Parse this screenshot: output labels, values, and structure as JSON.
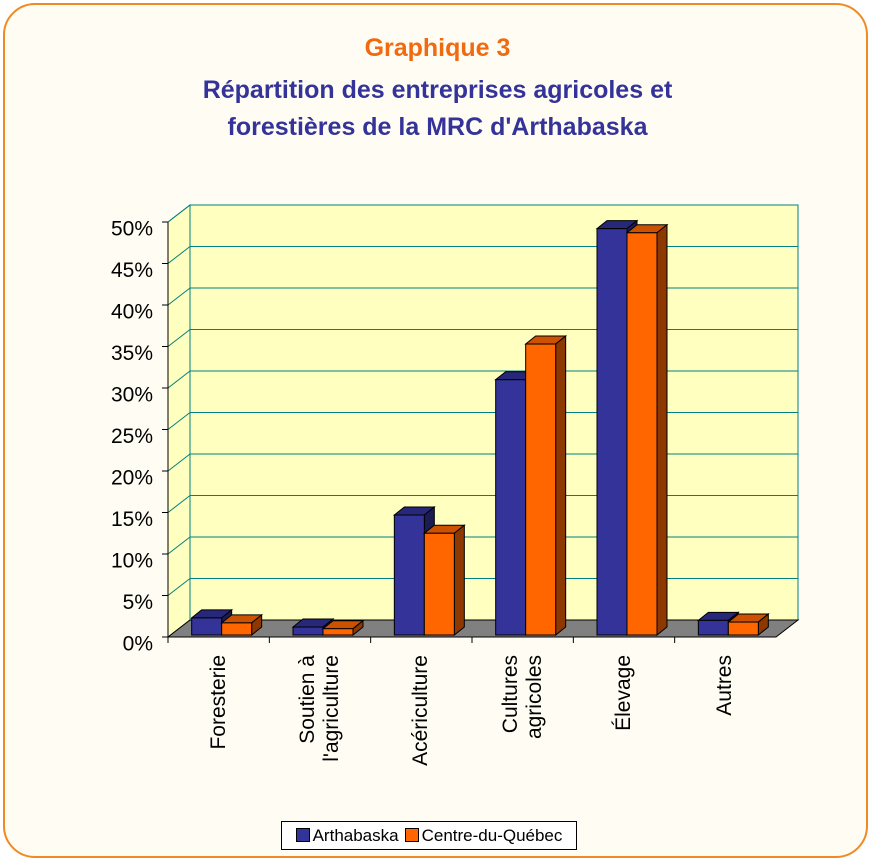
{
  "chart_data": {
    "type": "bar3d",
    "title": "Graphique 3",
    "subtitle": "Répartition des entreprises agricoles et\nforestières de la MRC d'Arthabaska",
    "categories": [
      "Foresterie",
      "Soutien à\nl'agriculture",
      "Acériculture",
      "Cultures\nagricoles",
      "Élevage",
      "Autres"
    ],
    "series": [
      {
        "name": "Arthabaska",
        "color": "#333399",
        "values": [
          2.3,
          1.2,
          14.7,
          31,
          49.2,
          2.0
        ]
      },
      {
        "name": "Centre-du-Québec",
        "color": "#ff6600",
        "values": [
          1.7,
          1.0,
          12.5,
          35.3,
          48.7,
          1.8
        ]
      }
    ],
    "ylim": [
      0,
      50
    ],
    "yticks": [
      {
        "value": 0,
        "label": "0%"
      },
      {
        "value": 5,
        "label": "5%"
      },
      {
        "value": 10,
        "label": "10%"
      },
      {
        "value": 15,
        "label": "15%"
      },
      {
        "value": 20,
        "label": "20%"
      },
      {
        "value": 25,
        "label": "25%"
      },
      {
        "value": 30,
        "label": "30%"
      },
      {
        "value": 35,
        "label": "35%"
      },
      {
        "value": 40,
        "label": "40%"
      },
      {
        "value": 45,
        "label": "45%"
      },
      {
        "value": 50,
        "label": "50%"
      }
    ],
    "grid": true
  }
}
